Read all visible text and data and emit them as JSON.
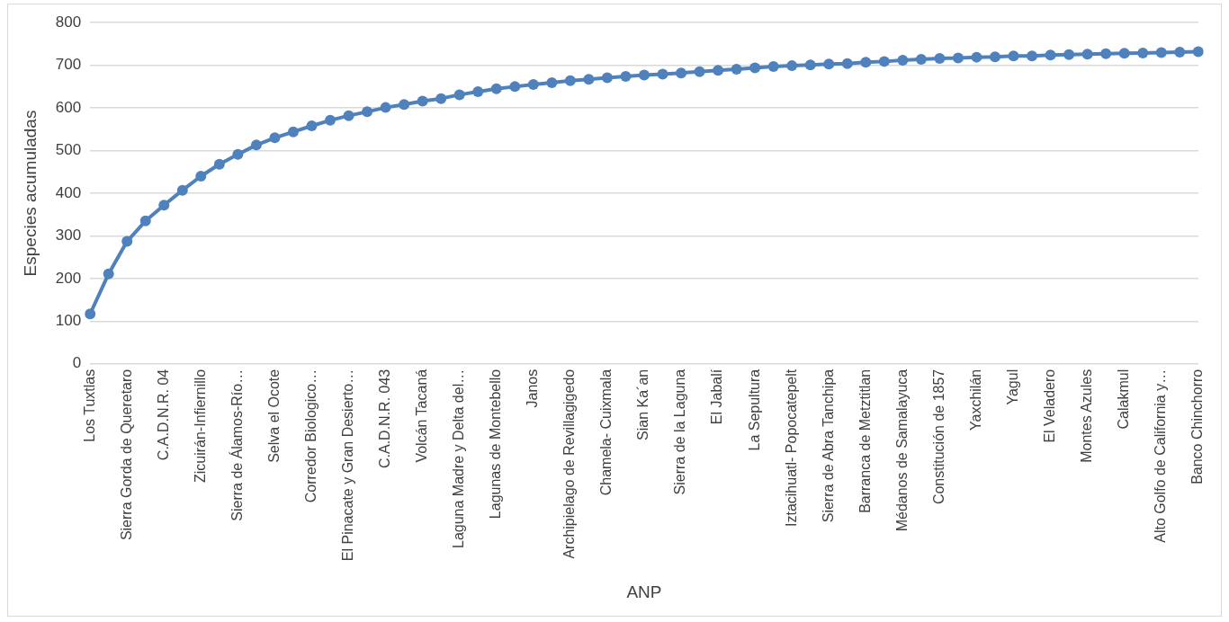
{
  "chart_data": {
    "type": "line",
    "xlabel": "ANP",
    "ylabel": "Especies acumuladas",
    "categories": [
      "Los Tuxtlas",
      null,
      "Sierra Gorda de Queretaro",
      null,
      "C.A.D.N.R. 04",
      null,
      "Zicuirán-Infiernillo",
      null,
      "Sierra de Álamos-Río…",
      null,
      "Selva el Ocote",
      null,
      "Corredor Biologico…",
      null,
      "El Pinacate y Gran Desierto…",
      null,
      "C.A.D.N.R. 043",
      null,
      "Volcán Tacaná",
      null,
      "Laguna Madre y Delta del…",
      null,
      "Lagunas de Montebello",
      null,
      "Janos",
      null,
      "Archipielago de Revillagigedo",
      null,
      "Chamela- Cuixmala",
      null,
      "Sian Ka´an",
      null,
      "Sierra de la Laguna",
      null,
      "El Jabalí",
      null,
      "La Sepultura",
      null,
      "Iztacihuatl- Popocatepelt",
      null,
      "Sierra de Abra Tanchipa",
      null,
      "Barranca de Metztitlan",
      null,
      "Médanos de Samalayuca",
      null,
      "Constitución de 1857",
      null,
      "Yaxchilán",
      null,
      "Yagul",
      null,
      "El Veladero",
      null,
      "Montes Azules",
      null,
      "Calakmul",
      null,
      "Alto Golfo de California y…",
      null,
      "Banco Chinchorro"
    ],
    "series": [
      {
        "color": "#4f81bd",
        "values": [
          117,
          211,
          287,
          335,
          372,
          407,
          440,
          468,
          491,
          513,
          530,
          544,
          558,
          571,
          582,
          591,
          601,
          608,
          616,
          622,
          631,
          638,
          645,
          650,
          655,
          659,
          664,
          667,
          671,
          674,
          677,
          679,
          682,
          685,
          688,
          691,
          694,
          697,
          699,
          701,
          703,
          704,
          707,
          709,
          712,
          714,
          716,
          717,
          719,
          720,
          722,
          722,
          724,
          725,
          726,
          727,
          728,
          729,
          730,
          731,
          732
        ]
      }
    ],
    "ylim": [
      0,
      800
    ],
    "yticks": [
      0,
      100,
      200,
      300,
      400,
      500,
      600,
      700,
      800
    ],
    "grid": "y",
    "marker": "circle",
    "line_style": "solid"
  }
}
